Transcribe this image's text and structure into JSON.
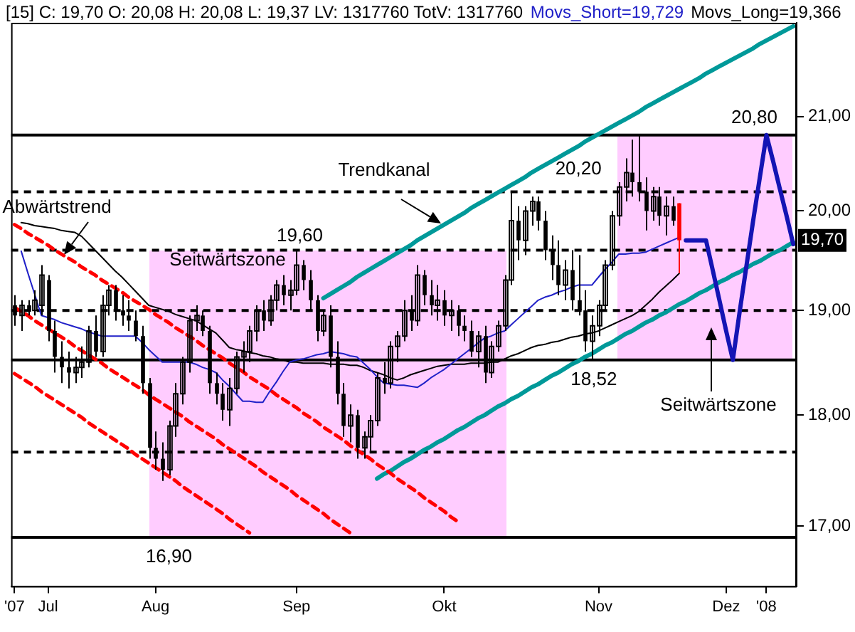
{
  "chart_data": {
    "type": "candlestick",
    "title": "[15] C: 19,70 O: 20,08 H: 20,08 L: 19,37 LV: 1317760 TotV: 1317760",
    "log": "y",
    "legend": "top",
    "categories": [
      "'07",
      null,
      null,
      null,
      null,
      "Jul",
      null,
      null,
      null,
      null,
      null,
      null,
      null,
      null,
      null,
      null,
      null,
      null,
      null,
      null,
      null,
      "Aug",
      null,
      null,
      null,
      null,
      null,
      null,
      null,
      null,
      null,
      null,
      null,
      null,
      null,
      null,
      null,
      null,
      null,
      null,
      null,
      null,
      "Sep",
      null,
      null,
      null,
      null,
      null,
      null,
      null,
      null,
      null,
      null,
      null,
      null,
      null,
      null,
      null,
      null,
      null,
      null,
      null,
      null,
      null,
      "Okt",
      null,
      null,
      null,
      null,
      null,
      null,
      null,
      null,
      null,
      null,
      null,
      null,
      null,
      null,
      null,
      null,
      null,
      null,
      null,
      null,
      null,
      null,
      "Nov",
      null,
      null,
      null,
      null,
      null,
      null,
      null,
      null,
      null,
      null,
      null,
      null,
      null,
      null,
      null,
      null,
      null,
      null,
      "Dez",
      null,
      null,
      null,
      null,
      null,
      "'08",
      null,
      null,
      null,
      null
    ],
    "ylim": [
      16.48,
      22.04
    ],
    "yticks": [
      {
        "value": 17,
        "label": "17,00"
      },
      {
        "value": 18,
        "label": "18,00"
      },
      {
        "value": 19,
        "label": "19,00"
      },
      {
        "value": 20,
        "label": "20,00"
      },
      {
        "value": 21,
        "label": "21,00"
      }
    ],
    "series": [
      {
        "type": "candlestick",
        "color": "#000000",
        "ohlc": [
          [
            19.05,
            19.15,
            18.85,
            18.95
          ],
          [
            18.95,
            19.1,
            18.8,
            19.05
          ],
          [
            19.05,
            19.1,
            18.95,
            19.0
          ],
          [
            19.0,
            19.2,
            18.95,
            19.1
          ],
          [
            19.05,
            19.45,
            18.95,
            19.35
          ],
          [
            19.3,
            19.35,
            18.7,
            18.8
          ],
          [
            18.8,
            18.9,
            18.4,
            18.55
          ],
          [
            18.55,
            18.7,
            18.3,
            18.45
          ],
          [
            18.45,
            18.6,
            18.25,
            18.4
          ],
          [
            18.4,
            18.55,
            18.3,
            18.45
          ],
          [
            18.45,
            18.65,
            18.35,
            18.5
          ],
          [
            18.5,
            18.85,
            18.45,
            18.8
          ],
          [
            18.8,
            18.95,
            18.55,
            18.6
          ],
          [
            18.6,
            19.15,
            18.55,
            19.05
          ],
          [
            19.05,
            19.25,
            18.95,
            19.2
          ],
          [
            19.2,
            19.25,
            18.9,
            19.0
          ],
          [
            19.0,
            19.15,
            18.85,
            18.95
          ],
          [
            18.95,
            19.1,
            18.8,
            18.9
          ],
          [
            18.9,
            19.0,
            18.7,
            18.75
          ],
          [
            18.75,
            18.85,
            18.2,
            18.3
          ],
          [
            18.3,
            18.35,
            17.6,
            17.7
          ],
          [
            17.7,
            17.85,
            17.5,
            17.6
          ],
          [
            17.6,
            17.75,
            17.4,
            17.5
          ],
          [
            17.5,
            17.95,
            17.45,
            17.9
          ],
          [
            17.9,
            18.3,
            17.8,
            18.2
          ],
          [
            18.2,
            18.55,
            18.1,
            18.5
          ],
          [
            18.5,
            18.95,
            18.4,
            18.9
          ],
          [
            18.9,
            19.05,
            18.8,
            18.95
          ],
          [
            18.95,
            19.0,
            18.75,
            18.8
          ],
          [
            18.8,
            18.85,
            18.2,
            18.3
          ],
          [
            18.3,
            18.4,
            18.1,
            18.2
          ],
          [
            18.2,
            18.3,
            17.95,
            18.05
          ],
          [
            18.05,
            18.35,
            17.9,
            18.25
          ],
          [
            18.25,
            18.6,
            18.2,
            18.55
          ],
          [
            18.55,
            18.7,
            18.4,
            18.6
          ],
          [
            18.6,
            18.85,
            18.5,
            18.8
          ],
          [
            18.8,
            19.05,
            18.7,
            19.0
          ],
          [
            19.0,
            19.1,
            18.8,
            18.9
          ],
          [
            18.9,
            19.15,
            18.85,
            19.1
          ],
          [
            19.1,
            19.3,
            19.0,
            19.25
          ],
          [
            19.25,
            19.35,
            19.05,
            19.15
          ],
          [
            19.15,
            19.3,
            19.0,
            19.2
          ],
          [
            19.2,
            19.6,
            19.15,
            19.45
          ],
          [
            19.45,
            19.5,
            19.2,
            19.3
          ],
          [
            19.3,
            19.4,
            19.0,
            19.1
          ],
          [
            19.1,
            19.15,
            18.7,
            18.8
          ],
          [
            18.8,
            19.0,
            18.75,
            18.95
          ],
          [
            18.95,
            19.05,
            18.45,
            18.55
          ],
          [
            18.55,
            18.7,
            18.1,
            18.2
          ],
          [
            18.2,
            18.3,
            17.8,
            17.9
          ],
          [
            17.9,
            18.1,
            17.75,
            18.0
          ],
          [
            18.0,
            18.05,
            17.6,
            17.7
          ],
          [
            17.7,
            17.85,
            17.6,
            17.8
          ],
          [
            17.8,
            18.0,
            17.65,
            17.95
          ],
          [
            17.95,
            18.4,
            17.9,
            18.35
          ],
          [
            18.35,
            18.5,
            18.2,
            18.3
          ],
          [
            18.3,
            18.7,
            18.25,
            18.65
          ],
          [
            18.65,
            18.8,
            18.5,
            18.75
          ],
          [
            18.75,
            19.1,
            18.7,
            19.0
          ],
          [
            19.0,
            19.15,
            18.8,
            18.9
          ],
          [
            18.9,
            19.45,
            18.85,
            19.35
          ],
          [
            19.35,
            19.4,
            19.05,
            19.15
          ],
          [
            19.15,
            19.3,
            18.95,
            19.05
          ],
          [
            19.05,
            19.25,
            18.9,
            19.1
          ],
          [
            19.1,
            19.2,
            18.85,
            18.95
          ],
          [
            18.95,
            19.1,
            18.8,
            19.0
          ],
          [
            19.0,
            19.05,
            18.75,
            18.85
          ],
          [
            18.85,
            18.95,
            18.7,
            18.8
          ],
          [
            18.8,
            18.9,
            18.55,
            18.6
          ],
          [
            18.6,
            18.8,
            18.45,
            18.75
          ],
          [
            18.75,
            18.85,
            18.3,
            18.4
          ],
          [
            18.4,
            18.7,
            18.35,
            18.65
          ],
          [
            18.65,
            18.9,
            18.6,
            18.85
          ],
          [
            18.85,
            19.35,
            18.8,
            19.3
          ],
          [
            19.3,
            20.2,
            19.25,
            19.9
          ],
          [
            19.9,
            20.05,
            19.5,
            19.7
          ],
          [
            19.7,
            20.05,
            19.55,
            20.0
          ],
          [
            20.0,
            20.15,
            19.85,
            20.1
          ],
          [
            20.1,
            20.15,
            19.8,
            19.9
          ],
          [
            19.9,
            20.0,
            19.5,
            19.6
          ],
          [
            19.6,
            19.75,
            19.3,
            19.45
          ],
          [
            19.45,
            19.7,
            19.15,
            19.25
          ],
          [
            19.25,
            19.5,
            19.1,
            19.4
          ],
          [
            19.4,
            19.6,
            19.0,
            19.1
          ],
          [
            19.1,
            19.55,
            18.95,
            19.0
          ],
          [
            19.0,
            19.2,
            18.6,
            18.7
          ],
          [
            18.7,
            18.95,
            18.52,
            18.85
          ],
          [
            18.85,
            19.1,
            18.75,
            19.05
          ],
          [
            19.05,
            19.5,
            19.0,
            19.45
          ],
          [
            19.45,
            20.0,
            19.4,
            19.95
          ],
          [
            19.95,
            20.3,
            19.85,
            20.25
          ],
          [
            20.25,
            20.55,
            20.1,
            20.4
          ],
          [
            20.4,
            20.75,
            20.15,
            20.3
          ],
          [
            20.3,
            20.8,
            20.1,
            20.2
          ],
          [
            20.2,
            20.35,
            19.8,
            20.0
          ],
          [
            20.0,
            20.25,
            19.9,
            20.15
          ],
          [
            20.15,
            20.25,
            19.85,
            19.95
          ],
          [
            19.95,
            20.15,
            19.75,
            20.05
          ],
          [
            20.05,
            20.15,
            19.85,
            19.9
          ],
          null,
          null,
          null,
          null,
          null,
          null,
          null,
          null,
          null,
          null,
          null,
          null,
          null,
          null,
          null,
          null,
          null,
          null
        ]
      },
      {
        "type": "candlestick",
        "color": "#ff0000",
        "ohlc": [
          null,
          null,
          null,
          null,
          null,
          null,
          null,
          null,
          null,
          null,
          null,
          null,
          null,
          null,
          null,
          null,
          null,
          null,
          null,
          null,
          null,
          null,
          null,
          null,
          null,
          null,
          null,
          null,
          null,
          null,
          null,
          null,
          null,
          null,
          null,
          null,
          null,
          null,
          null,
          null,
          null,
          null,
          null,
          null,
          null,
          null,
          null,
          null,
          null,
          null,
          null,
          null,
          null,
          null,
          null,
          null,
          null,
          null,
          null,
          null,
          null,
          null,
          null,
          null,
          null,
          null,
          null,
          null,
          null,
          null,
          null,
          null,
          null,
          null,
          null,
          null,
          null,
          null,
          null,
          null,
          null,
          null,
          null,
          null,
          null,
          null,
          null,
          null,
          null,
          null,
          null,
          null,
          null,
          null,
          null,
          null,
          null,
          null,
          null,
          [
            20.08,
            20.08,
            19.37,
            19.7
          ],
          null,
          null,
          null,
          null,
          null,
          null,
          null,
          null,
          null,
          null,
          null,
          null,
          null,
          null,
          null,
          null,
          null
        ]
      },
      {
        "type": "line",
        "name": "Movs_Short=19,729",
        "color": "#2020c8",
        "values": [
          null,
          19.59,
          19.37,
          19.16,
          18.95,
          18.93,
          18.91,
          18.88,
          18.86,
          18.84,
          18.82,
          18.79,
          18.77,
          18.75,
          18.75,
          18.75,
          18.75,
          18.75,
          18.75,
          18.69,
          18.62,
          18.56,
          18.5,
          18.5,
          18.5,
          18.5,
          18.5,
          18.48,
          18.45,
          18.43,
          18.4,
          18.33,
          18.27,
          18.2,
          18.13,
          18.13,
          18.12,
          18.12,
          18.22,
          18.31,
          18.41,
          18.5,
          18.52,
          18.53,
          18.55,
          18.57,
          18.58,
          18.6,
          18.59,
          18.58,
          18.56,
          18.55,
          18.49,
          18.43,
          18.36,
          18.3,
          18.29,
          18.28,
          18.28,
          18.27,
          18.26,
          18.3,
          18.35,
          18.39,
          18.43,
          18.48,
          18.53,
          18.58,
          18.63,
          18.68,
          18.73,
          18.75,
          18.78,
          18.8,
          18.86,
          18.92,
          18.98,
          19.04,
          19.1,
          19.13,
          19.15,
          19.18,
          19.2,
          19.23,
          19.25,
          19.25,
          19.25,
          19.33,
          19.41,
          19.48,
          19.56,
          19.56,
          19.57,
          19.57,
          19.58,
          19.61,
          19.64,
          19.67,
          19.7,
          19.729,
          null,
          null,
          null,
          null,
          null,
          null,
          null,
          null,
          null,
          null,
          null,
          null,
          null,
          null,
          null,
          null,
          null
        ]
      },
      {
        "type": "line",
        "name": "Movs_Long=19,366",
        "color": "#000000",
        "values": [
          null,
          19.88,
          19.87,
          19.85,
          19.84,
          19.83,
          19.82,
          19.8,
          19.79,
          19.78,
          19.74,
          19.67,
          19.6,
          19.53,
          19.46,
          19.39,
          19.33,
          19.26,
          19.19,
          19.12,
          19.05,
          19.03,
          19.01,
          18.99,
          18.96,
          18.94,
          18.92,
          18.9,
          18.86,
          18.82,
          18.78,
          18.71,
          18.64,
          18.62,
          18.61,
          18.59,
          18.58,
          18.56,
          18.55,
          18.53,
          18.52,
          18.5,
          18.5,
          18.49,
          18.49,
          18.49,
          18.49,
          18.48,
          18.48,
          18.48,
          18.47,
          18.47,
          18.45,
          18.42,
          18.4,
          18.38,
          18.35,
          18.33,
          18.35,
          18.38,
          18.4,
          18.42,
          18.44,
          18.46,
          18.47,
          18.48,
          18.48,
          18.48,
          18.49,
          18.49,
          18.49,
          18.5,
          18.5,
          18.53,
          18.56,
          18.58,
          18.61,
          18.64,
          18.66,
          18.67,
          18.69,
          18.7,
          18.72,
          18.74,
          18.75,
          18.77,
          18.78,
          18.8,
          18.83,
          18.86,
          18.89,
          18.92,
          18.95,
          18.99,
          19.05,
          19.11,
          19.18,
          19.24,
          19.3,
          19.366,
          null,
          null,
          null,
          null,
          null,
          null,
          null,
          null,
          null,
          null,
          null,
          null,
          null,
          null,
          null,
          null,
          null
        ]
      },
      {
        "type": "line",
        "color": "#1414b4",
        "values": [
          null,
          null,
          null,
          null,
          null,
          null,
          null,
          null,
          null,
          null,
          null,
          null,
          null,
          null,
          null,
          null,
          null,
          null,
          null,
          null,
          null,
          null,
          null,
          null,
          null,
          null,
          null,
          null,
          null,
          null,
          null,
          null,
          null,
          null,
          null,
          null,
          null,
          null,
          null,
          null,
          null,
          null,
          null,
          null,
          null,
          null,
          null,
          null,
          null,
          null,
          null,
          null,
          null,
          null,
          null,
          null,
          null,
          null,
          null,
          null,
          null,
          null,
          null,
          null,
          null,
          null,
          null,
          null,
          null,
          null,
          null,
          null,
          null,
          null,
          null,
          null,
          null,
          null,
          null,
          null,
          null,
          null,
          null,
          null,
          null,
          null,
          null,
          null,
          null,
          null,
          null,
          null,
          null,
          null,
          null,
          null,
          null,
          null,
          null,
          null,
          19.7,
          19.7,
          19.7,
          19.7,
          19.4,
          19.1,
          18.8,
          18.52,
          18.98,
          19.43,
          19.89,
          20.34,
          20.8,
          20.52,
          20.23,
          19.95,
          19.66
        ]
      },
      {
        "type": "line",
        "color": "#ff0000",
        "line_style": "dashed",
        "values": [
          19.86,
          19.82,
          19.77,
          19.73,
          19.69,
          19.65,
          19.6,
          19.56,
          19.52,
          19.48,
          19.43,
          19.39,
          19.35,
          19.3,
          19.26,
          19.22,
          19.18,
          19.13,
          19.09,
          19.05,
          19.01,
          18.96,
          18.92,
          18.88,
          18.83,
          18.79,
          18.75,
          18.71,
          18.66,
          18.62,
          18.58,
          18.54,
          18.49,
          18.45,
          18.41,
          18.36,
          18.32,
          18.28,
          18.24,
          18.19,
          18.15,
          18.11,
          18.07,
          18.02,
          17.98,
          17.94,
          17.89,
          17.85,
          17.81,
          17.77,
          17.72,
          17.68,
          17.64,
          17.6,
          17.55,
          17.51,
          17.47,
          17.42,
          17.38,
          17.34,
          17.3,
          17.25,
          17.21,
          17.17,
          17.13,
          17.08,
          17.04,
          null,
          null,
          null,
          null,
          null,
          null,
          null,
          null,
          null,
          null,
          null,
          null,
          null,
          null,
          null,
          null,
          null,
          null,
          null,
          null,
          null,
          null,
          null,
          null,
          null,
          null,
          null,
          null,
          null,
          null,
          null,
          null,
          null,
          null,
          null,
          null,
          null,
          null,
          null,
          null,
          null,
          null,
          null,
          null,
          null,
          null,
          null,
          null,
          null,
          null
        ]
      },
      {
        "type": "line",
        "color": "#ff0000",
        "line_style": "dashed",
        "values": [
          19.03,
          18.99,
          18.95,
          18.9,
          18.86,
          18.82,
          18.78,
          18.74,
          18.7,
          18.65,
          18.61,
          18.57,
          18.53,
          18.49,
          18.44,
          18.4,
          18.36,
          18.32,
          18.28,
          18.24,
          18.19,
          18.15,
          18.11,
          18.07,
          18.03,
          17.99,
          17.94,
          17.9,
          17.86,
          17.82,
          17.78,
          17.73,
          17.69,
          17.65,
          17.61,
          17.57,
          17.53,
          17.48,
          17.44,
          17.4,
          17.36,
          17.32,
          17.27,
          17.23,
          17.19,
          17.15,
          17.11,
          17.06,
          17.02,
          16.98,
          16.94,
          null,
          null,
          null,
          null,
          null,
          null,
          null,
          null,
          null,
          null,
          null,
          null,
          null,
          null,
          null,
          null,
          null,
          null,
          null,
          null,
          null,
          null,
          null,
          null,
          null,
          null,
          null,
          null,
          null,
          null,
          null,
          null,
          null,
          null,
          null,
          null,
          null,
          null,
          null,
          null,
          null,
          null,
          null,
          null,
          null,
          null,
          null,
          null,
          null,
          null,
          null,
          null,
          null,
          null,
          null,
          null,
          null,
          null,
          null,
          null,
          null,
          null,
          null,
          null,
          null,
          null
        ]
      },
      {
        "type": "line",
        "color": "#ff0000",
        "line_style": "dashed",
        "values": [
          18.39,
          18.35,
          18.31,
          18.27,
          18.22,
          18.18,
          18.14,
          18.1,
          18.06,
          18.02,
          17.98,
          17.93,
          17.89,
          17.85,
          17.81,
          17.77,
          17.73,
          17.69,
          17.64,
          17.6,
          17.56,
          17.52,
          17.48,
          17.44,
          17.4,
          17.35,
          17.31,
          17.27,
          17.23,
          17.19,
          17.15,
          17.11,
          17.06,
          17.02,
          16.98,
          16.94,
          null,
          null,
          null,
          null,
          null,
          null,
          null,
          null,
          null,
          null,
          null,
          null,
          null,
          null,
          null,
          null,
          null,
          null,
          null,
          null,
          null,
          null,
          null,
          null,
          null,
          null,
          null,
          null,
          null,
          null,
          null,
          null,
          null,
          null,
          null,
          null,
          null,
          null,
          null,
          null,
          null,
          null,
          null,
          null,
          null,
          null,
          null,
          null,
          null,
          null,
          null,
          null,
          null,
          null,
          null,
          null,
          null,
          null,
          null,
          null,
          null,
          null,
          null,
          null,
          null,
          null,
          null,
          null,
          null,
          null,
          null,
          null,
          null,
          null,
          null,
          null,
          null,
          null,
          null,
          null,
          null
        ]
      },
      {
        "type": "line",
        "color": "#009999",
        "values": [
          null,
          null,
          null,
          null,
          null,
          null,
          null,
          null,
          null,
          null,
          null,
          null,
          null,
          null,
          null,
          null,
          null,
          null,
          null,
          null,
          null,
          null,
          null,
          null,
          null,
          null,
          null,
          null,
          null,
          null,
          null,
          null,
          null,
          null,
          null,
          null,
          null,
          null,
          null,
          null,
          null,
          null,
          null,
          null,
          null,
          null,
          19.12,
          19.16,
          19.2,
          19.24,
          19.28,
          19.33,
          19.37,
          19.41,
          19.45,
          19.49,
          19.53,
          19.57,
          19.61,
          19.65,
          19.7,
          19.74,
          19.78,
          19.82,
          19.86,
          19.9,
          19.94,
          19.98,
          20.03,
          20.07,
          20.11,
          20.15,
          20.19,
          20.23,
          20.27,
          20.31,
          20.35,
          20.4,
          20.44,
          20.48,
          20.52,
          20.56,
          20.6,
          20.64,
          20.68,
          20.73,
          20.77,
          20.81,
          20.85,
          20.89,
          20.93,
          20.97,
          21.01,
          21.05,
          21.1,
          21.14,
          21.18,
          21.22,
          21.26,
          21.3,
          21.34,
          21.38,
          21.42,
          21.47,
          21.51,
          21.55,
          21.59,
          21.63,
          21.67,
          21.71,
          21.75,
          21.8,
          21.84,
          21.88,
          21.92,
          21.96,
          22.0
        ]
      },
      {
        "type": "line",
        "color": "#009999",
        "values": [
          null,
          null,
          null,
          null,
          null,
          null,
          null,
          null,
          null,
          null,
          null,
          null,
          null,
          null,
          null,
          null,
          null,
          null,
          null,
          null,
          null,
          null,
          null,
          null,
          null,
          null,
          null,
          null,
          null,
          null,
          null,
          null,
          null,
          null,
          null,
          null,
          null,
          null,
          null,
          null,
          null,
          null,
          null,
          null,
          null,
          null,
          null,
          null,
          null,
          null,
          null,
          null,
          null,
          null,
          17.42,
          17.46,
          17.49,
          17.53,
          17.57,
          17.6,
          17.64,
          17.68,
          17.71,
          17.75,
          17.78,
          17.82,
          17.86,
          17.89,
          17.93,
          17.97,
          18.0,
          18.04,
          18.08,
          18.11,
          18.15,
          18.18,
          18.22,
          18.26,
          18.29,
          18.33,
          18.37,
          18.4,
          18.44,
          18.48,
          18.51,
          18.55,
          18.58,
          18.62,
          18.66,
          18.69,
          18.73,
          18.77,
          18.8,
          18.84,
          18.88,
          18.91,
          18.95,
          18.98,
          19.02,
          19.06,
          19.09,
          19.13,
          19.17,
          19.2,
          19.24,
          19.28,
          19.31,
          19.35,
          19.38,
          19.42,
          19.46,
          19.49,
          19.53,
          19.57,
          19.6,
          19.64,
          19.68
        ]
      }
    ],
    "ref_lines": [
      {
        "axis": "y",
        "value": 20.8,
        "line_style": "solid"
      },
      {
        "axis": "y",
        "value": 20.2,
        "line_style": "dashed"
      },
      {
        "axis": "y",
        "value": 19.6,
        "line_style": "dashed"
      },
      {
        "axis": "y",
        "value": 19.0,
        "line_style": "dashed"
      },
      {
        "axis": "y",
        "value": 18.52,
        "line_style": "solid"
      },
      {
        "axis": "y",
        "value": 17.66,
        "line_style": "dashed"
      },
      {
        "axis": "y",
        "value": 16.9,
        "line_style": "solid"
      }
    ],
    "annotations": [
      "Abwärtstrend",
      "Trendkanal",
      "Seitwärtszone",
      "Seitwärtszone",
      {
        "text": "19,60",
        "y": 19.6
      },
      {
        "text": "20,20",
        "y": 20.2
      },
      {
        "text": "20,80",
        "y": 20.8
      },
      {
        "text": "18,52",
        "y": 18.52
      },
      {
        "text": "16,90",
        "y": 16.9
      },
      {
        "text": "19,70",
        "y": 19.7
      }
    ]
  }
}
